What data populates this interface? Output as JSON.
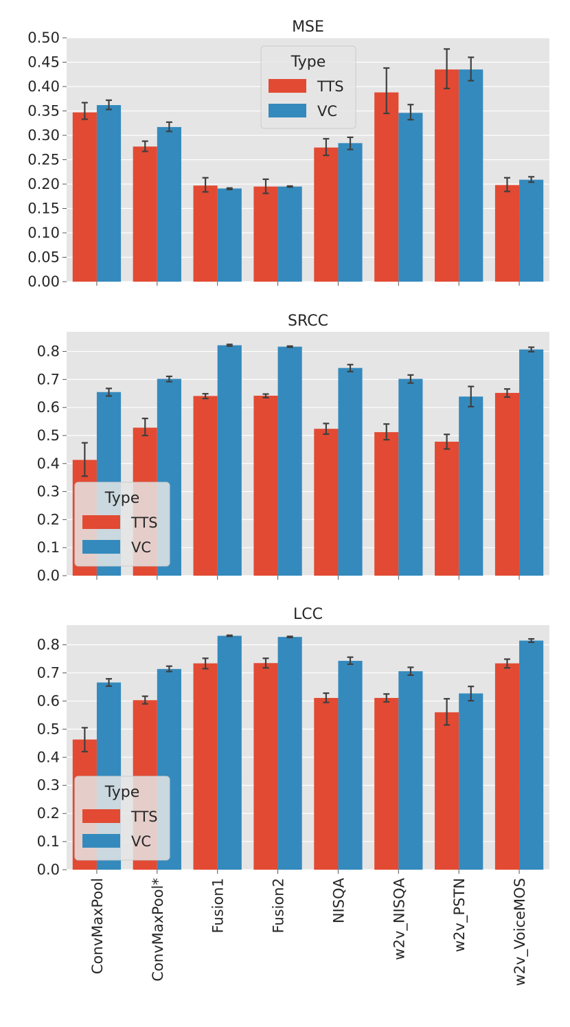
{
  "chart_data": [
    {
      "type": "bar",
      "title": "MSE",
      "categories": [
        "ConvMaxPool",
        "ConvMaxPool*",
        "Fusion1",
        "Fusion2",
        "NISQA",
        "w2v_NISQA",
        "w2v_PSTN",
        "w2v_VoiceMOS"
      ],
      "series": [
        {
          "name": "TTS",
          "color": "#E24A33",
          "values": [
            0.347,
            0.277,
            0.197,
            0.195,
            0.275,
            0.388,
            0.435,
            0.198
          ],
          "err_low": [
            0.333,
            0.267,
            0.184,
            0.181,
            0.259,
            0.345,
            0.396,
            0.185
          ],
          "err_high": [
            0.367,
            0.288,
            0.213,
            0.21,
            0.293,
            0.438,
            0.477,
            0.213
          ]
        },
        {
          "name": "VC",
          "color": "#348ABD",
          "values": [
            0.362,
            0.317,
            0.191,
            0.195,
            0.284,
            0.346,
            0.435,
            0.209
          ],
          "err_low": [
            0.353,
            0.308,
            0.189,
            0.194,
            0.271,
            0.332,
            0.412,
            0.204
          ],
          "err_high": [
            0.372,
            0.327,
            0.192,
            0.196,
            0.296,
            0.363,
            0.46,
            0.215
          ]
        }
      ],
      "yticks": [
        "0.00",
        "0.05",
        "0.10",
        "0.15",
        "0.20",
        "0.25",
        "0.30",
        "0.35",
        "0.40",
        "0.45",
        "0.50"
      ],
      "ylim": [
        0,
        0.5
      ],
      "legend": {
        "title": "Type",
        "labels": [
          "TTS",
          "VC"
        ],
        "position": "upper-center"
      },
      "show_xlabels": false
    },
    {
      "type": "bar",
      "title": "SRCC",
      "categories": [
        "ConvMaxPool",
        "ConvMaxPool*",
        "Fusion1",
        "Fusion2",
        "NISQA",
        "w2v_NISQA",
        "w2v_PSTN",
        "w2v_VoiceMOS"
      ],
      "series": [
        {
          "name": "TTS",
          "color": "#E24A33",
          "values": [
            0.413,
            0.528,
            0.641,
            0.642,
            0.524,
            0.512,
            0.478,
            0.652
          ],
          "err_low": [
            0.355,
            0.5,
            0.632,
            0.635,
            0.505,
            0.485,
            0.452,
            0.637
          ],
          "err_high": [
            0.474,
            0.561,
            0.649,
            0.648,
            0.543,
            0.541,
            0.504,
            0.666
          ]
        },
        {
          "name": "VC",
          "color": "#348ABD",
          "values": [
            0.655,
            0.702,
            0.822,
            0.817,
            0.741,
            0.702,
            0.639,
            0.807
          ],
          "err_low": [
            0.641,
            0.692,
            0.819,
            0.815,
            0.728,
            0.687,
            0.603,
            0.799
          ],
          "err_high": [
            0.668,
            0.711,
            0.825,
            0.819,
            0.753,
            0.716,
            0.675,
            0.815
          ]
        }
      ],
      "yticks": [
        "0.0",
        "0.1",
        "0.2",
        "0.3",
        "0.4",
        "0.5",
        "0.6",
        "0.7",
        "0.8"
      ],
      "ylim": [
        0,
        0.87
      ],
      "legend": {
        "title": "Type",
        "labels": [
          "TTS",
          "VC"
        ],
        "position": "lower-left"
      },
      "show_xlabels": false
    },
    {
      "type": "bar",
      "title": "LCC",
      "categories": [
        "ConvMaxPool",
        "ConvMaxPool*",
        "Fusion1",
        "Fusion2",
        "NISQA",
        "w2v_NISQA",
        "w2v_PSTN",
        "w2v_VoiceMOS"
      ],
      "series": [
        {
          "name": "TTS",
          "color": "#E24A33",
          "values": [
            0.463,
            0.603,
            0.734,
            0.735,
            0.611,
            0.611,
            0.56,
            0.734
          ],
          "err_low": [
            0.42,
            0.59,
            0.715,
            0.718,
            0.595,
            0.597,
            0.515,
            0.718
          ],
          "err_high": [
            0.505,
            0.617,
            0.752,
            0.752,
            0.628,
            0.625,
            0.608,
            0.749
          ]
        },
        {
          "name": "VC",
          "color": "#348ABD",
          "values": [
            0.666,
            0.714,
            0.832,
            0.828,
            0.743,
            0.706,
            0.627,
            0.815
          ],
          "err_low": [
            0.653,
            0.705,
            0.83,
            0.826,
            0.731,
            0.692,
            0.601,
            0.809
          ],
          "err_high": [
            0.679,
            0.724,
            0.834,
            0.83,
            0.756,
            0.72,
            0.652,
            0.821
          ]
        }
      ],
      "yticks": [
        "0.0",
        "0.1",
        "0.2",
        "0.3",
        "0.4",
        "0.5",
        "0.6",
        "0.7",
        "0.8"
      ],
      "ylim": [
        0,
        0.87
      ],
      "legend": {
        "title": "Type",
        "labels": [
          "TTS",
          "VC"
        ],
        "position": "lower-left"
      },
      "show_xlabels": true
    }
  ],
  "colors": {
    "tts": "#E24A33",
    "vc": "#348ABD",
    "plot_background": "#E5E5E5",
    "grid": "#FFFFFF",
    "errorbar": "#3F3F3F"
  }
}
